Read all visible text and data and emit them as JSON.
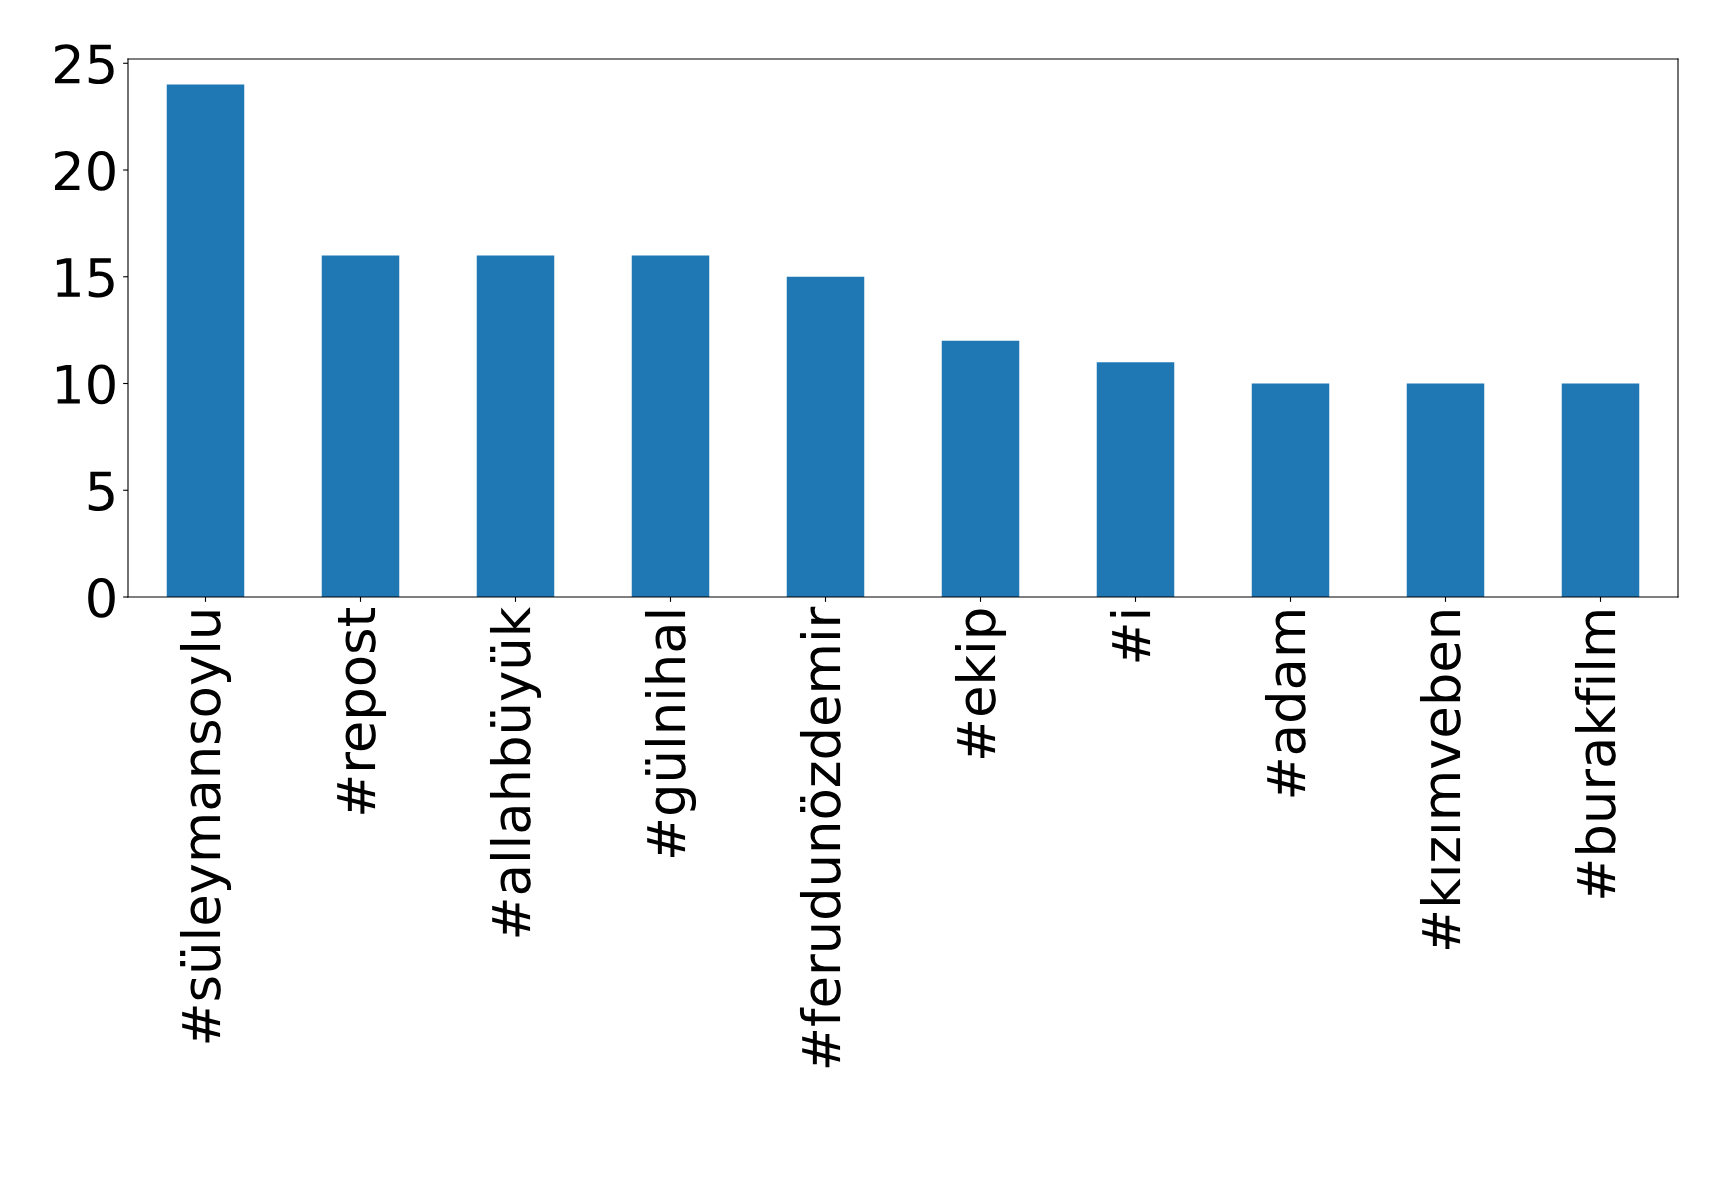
{
  "chart_data": {
    "type": "bar",
    "categories": [
      "#süleymansoylu",
      "#repost",
      "#allahbüyük",
      "#gülnihal",
      "#ferudunözdemir",
      "#ekip",
      "#i",
      "#adam",
      "#kızımveben",
      "#burakfilm"
    ],
    "values": [
      24,
      16,
      16,
      16,
      15,
      12,
      11,
      10,
      10,
      10
    ],
    "color": "#1f77b4",
    "ylim": [
      0,
      25.2
    ],
    "yticks": [
      0,
      5,
      10,
      15,
      20,
      25
    ],
    "grid": false,
    "legend": false
  }
}
